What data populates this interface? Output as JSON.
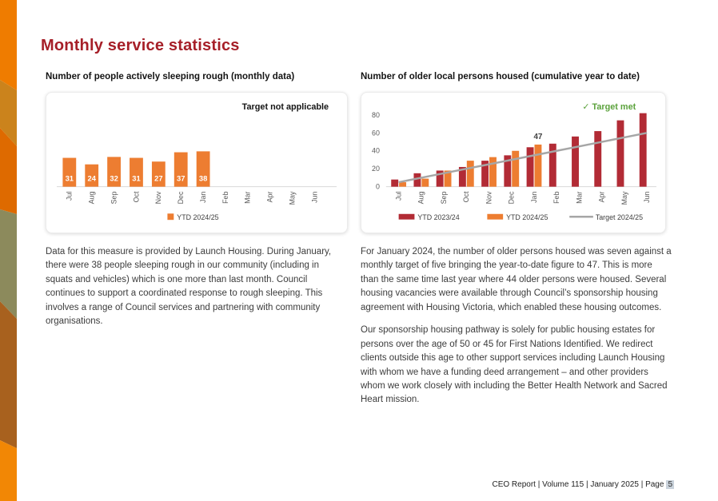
{
  "page": {
    "title": "Monthly service statistics",
    "footer": {
      "text": "CEO Report | Volume 115 | January 2025 | Page",
      "page_number": "5"
    }
  },
  "left_section": {
    "chart_title": "Number of people actively sleeping rough (monthly data)",
    "body": "Data for this measure is provided by Launch Housing. During January, there were 38 people sleeping rough in our community (including in squats and vehicles) which is one more than last month. Council continues to support a coordinated response to rough sleeping. This involves a range of Council services and partnering with community organisations."
  },
  "right_section": {
    "chart_title": "Number of older local persons housed (cumulative year to date)",
    "body_p1": "For January 2024, the number of older persons housed was seven against a monthly target of five bringing the year-to-date figure to 47. This is more than the same time last year where 44 older persons were housed. Several housing vacancies were available through Council’s sponsorship housing agreement with Housing Victoria, which enabled these housing outcomes.",
    "body_p2": "Our sponsorship housing pathway is solely for public housing estates for persons over the age of 50 or 45 for First Nations Identified. We redirect clients outside this age to other support services including Launch Housing with whom we have a funding deed arrangement – and other providers whom we work closely with including the Better Health Network and Sacred Heart mission."
  },
  "chart_data": [
    {
      "id": "rough-sleeping",
      "type": "bar",
      "title": "Number of people actively sleeping rough (monthly data)",
      "annotation": "Target not applicable",
      "categories": [
        "Jul",
        "Aug",
        "Sep",
        "Oct",
        "Nov",
        "Dec",
        "Jan",
        "Feb",
        "Mar",
        "Apr",
        "May",
        "Jun"
      ],
      "series": [
        {
          "name": "YTD 2024/25",
          "type": "bar",
          "color": "#ED7D31",
          "values": [
            31,
            24,
            32,
            31,
            27,
            37,
            38,
            null,
            null,
            null,
            null,
            null
          ]
        }
      ],
      "bar_labels": true,
      "ylim": [
        0,
        90
      ],
      "y_axis_visible": false,
      "grid": false,
      "legend_position": "bottom"
    },
    {
      "id": "older-persons-housed",
      "type": "bar+line",
      "title": "Number of older local persons housed (cumulative year to date)",
      "annotation": "✓ Target met",
      "categories": [
        "Jul",
        "Aug",
        "Sep",
        "Oct",
        "Nov",
        "Dec",
        "Jan",
        "Feb",
        "Mar",
        "Apr",
        "May",
        "Jun"
      ],
      "series": [
        {
          "name": "YTD 2023/24",
          "type": "bar",
          "color": "#B22B35",
          "values": [
            8,
            15,
            18,
            22,
            29,
            35,
            44,
            48,
            56,
            62,
            74,
            82
          ]
        },
        {
          "name": "YTD 2024/25",
          "type": "bar",
          "color": "#ED7D31",
          "values": [
            5,
            9,
            18,
            29,
            33,
            40,
            47,
            null,
            null,
            null,
            null,
            null
          ]
        },
        {
          "name": "Target 2024/25",
          "type": "line",
          "color": "#A6A6A6",
          "values": [
            5,
            10,
            15,
            20,
            25,
            30,
            35,
            40,
            45,
            50,
            55,
            60
          ]
        }
      ],
      "point_label": {
        "series": "YTD 2024/25",
        "category": "Jan",
        "text": "47"
      },
      "yticks": [
        0,
        20,
        40,
        60,
        80
      ],
      "ylim": [
        0,
        88
      ],
      "y_axis_visible": true,
      "grid": false,
      "legend_position": "bottom"
    }
  ],
  "colors": {
    "heading": "#A61F28",
    "target_met_green": "#5BA23C",
    "bar_orange": "#ED7D31",
    "bar_dark_red": "#B22B35",
    "target_line": "#A6A6A6",
    "axis_text": "#595959",
    "page_number_highlight": "#C9D2DB",
    "strip": [
      "#EF7C00",
      "#CB831C",
      "#DE6A00",
      "#8C8A5C",
      "#A8611E",
      "#F28705"
    ]
  }
}
